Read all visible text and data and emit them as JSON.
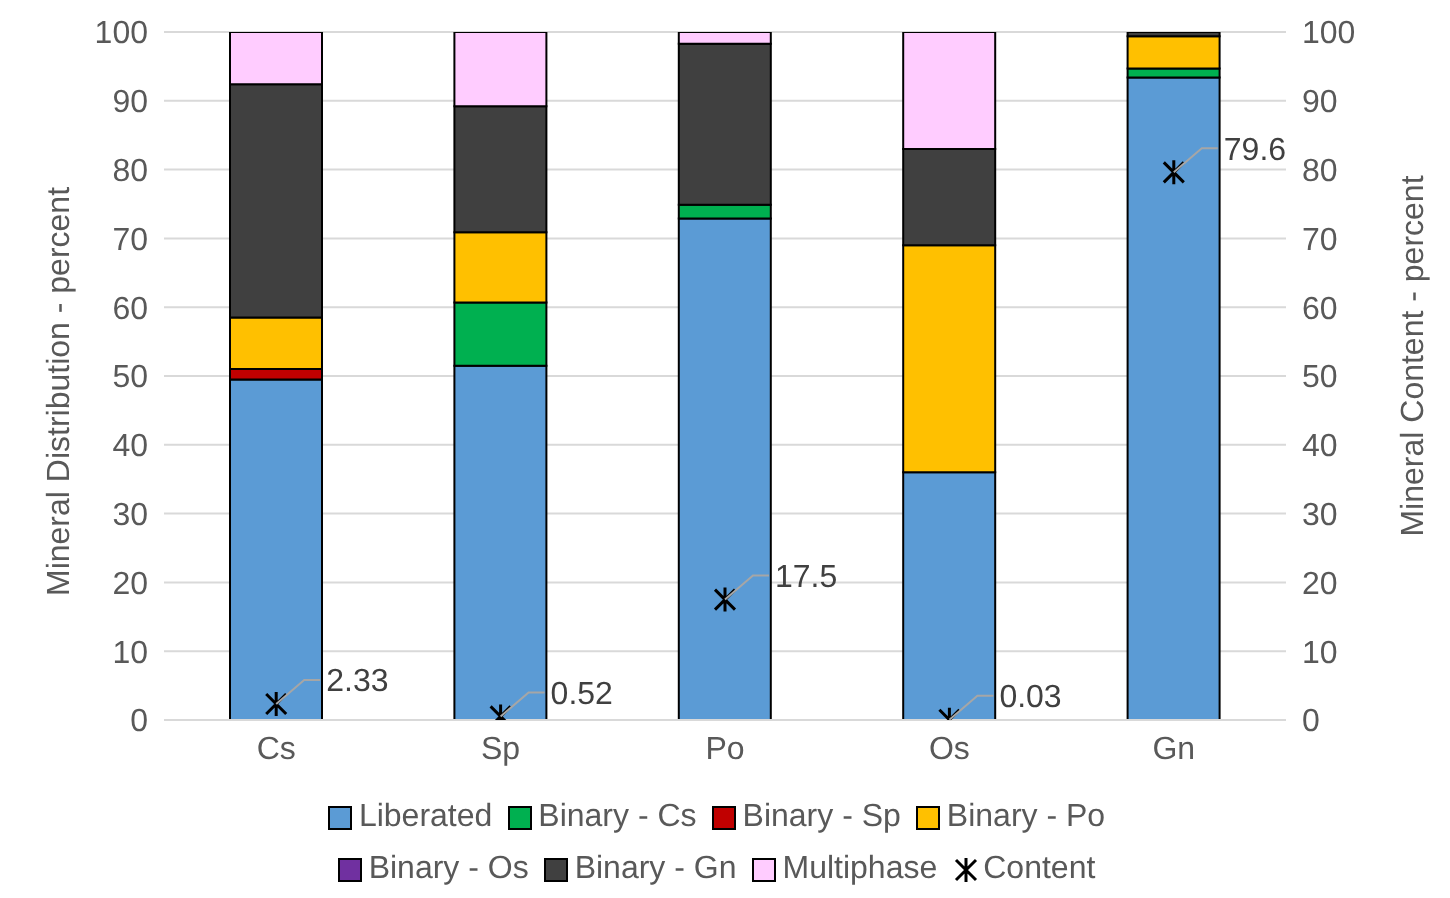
{
  "chart_data": {
    "type": "bar",
    "stacked": true,
    "categories": [
      "Cs",
      "Sp",
      "Po",
      "Os",
      "Gn"
    ],
    "ylabel": "Mineral Distribution - percent",
    "y2label": "Mineral Content - percent",
    "ylim": [
      0,
      100
    ],
    "yticks": [
      0,
      10,
      20,
      30,
      40,
      50,
      60,
      70,
      80,
      90,
      100
    ],
    "y2lim": [
      0,
      100
    ],
    "y2ticks": [
      0,
      10,
      20,
      30,
      40,
      50,
      60,
      70,
      80,
      90,
      100
    ],
    "grid": "y",
    "legend": "bottom",
    "series": [
      {
        "name": "Liberated",
        "color": "#5b9bd5",
        "values": [
          49.5,
          51.5,
          72.9,
          36,
          93.4
        ]
      },
      {
        "name": "Binary - Cs",
        "color": "#00b050",
        "values": [
          0,
          9.2,
          2,
          0,
          1.3
        ]
      },
      {
        "name": "Binary - Sp",
        "color": "#c00000",
        "values": [
          1.5,
          0,
          0,
          0,
          0
        ]
      },
      {
        "name": "Binary - Po",
        "color": "#ffc000",
        "values": [
          7.5,
          10.2,
          0,
          33,
          4.7
        ]
      },
      {
        "name": "Binary - Os",
        "color": "#7030a0",
        "values": [
          0,
          0,
          0,
          0,
          0
        ]
      },
      {
        "name": "Binary - Gn",
        "color": "#404040",
        "values": [
          33.9,
          18.3,
          23.4,
          14,
          0.6
        ]
      },
      {
        "name": "Multiphase",
        "color": "#ffccff",
        "values": [
          7.6,
          10.8,
          1.7,
          17,
          0
        ]
      },
      {
        "name": "Content",
        "type": "scatter",
        "axis": "y2",
        "marker": "cross",
        "color": "#000000",
        "values": [
          2.33,
          0.52,
          17.5,
          0.03,
          79.6
        ],
        "value_labels": [
          "2.33",
          "0.52",
          "17.5",
          "0.03",
          "79.6"
        ]
      }
    ]
  }
}
